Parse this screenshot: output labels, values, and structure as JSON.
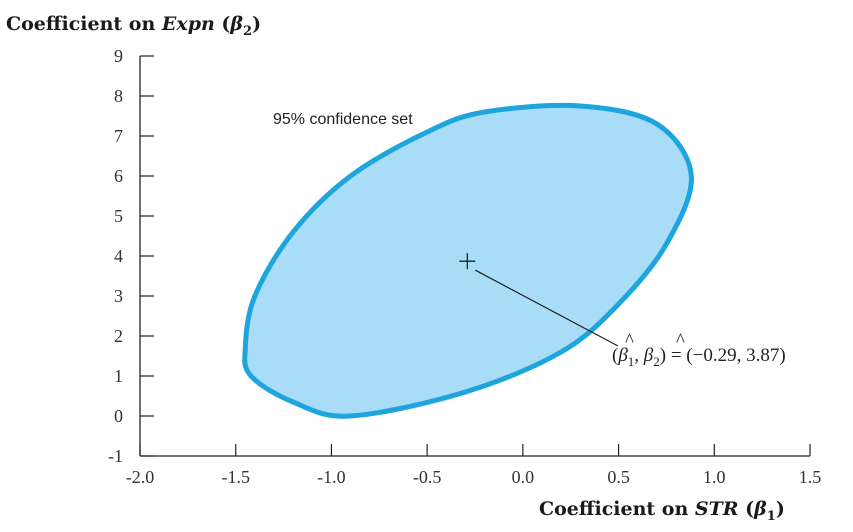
{
  "chart_data": {
    "type": "scatter",
    "title": "",
    "ylabel": {
      "prefix": "Coefficient on ",
      "variable": "Expn",
      "param_open": " (",
      "symbol": "β",
      "subscript": "2",
      "param_close": ")"
    },
    "xlabel": {
      "prefix": "Coefficient on ",
      "variable": "STR",
      "param_open": " (",
      "symbol": "β",
      "subscript": "1",
      "param_close": ")"
    },
    "xlim": [
      -2.0,
      1.5
    ],
    "ylim": [
      -1,
      9
    ],
    "xticks": [
      {
        "value": -2.0,
        "label": "-2.0"
      },
      {
        "value": -1.5,
        "label": "-1.5"
      },
      {
        "value": -1.0,
        "label": "-1.0"
      },
      {
        "value": -0.5,
        "label": "-0.5"
      },
      {
        "value": 0.0,
        "label": "0.0"
      },
      {
        "value": 0.5,
        "label": "0.5"
      },
      {
        "value": 1.0,
        "label": "1.0"
      },
      {
        "value": 1.5,
        "label": "1.5"
      }
    ],
    "yticks": [
      {
        "value": -1,
        "label": "-1"
      },
      {
        "value": 0,
        "label": "0"
      },
      {
        "value": 1,
        "label": "1"
      },
      {
        "value": 2,
        "label": "2"
      },
      {
        "value": 3,
        "label": "3"
      },
      {
        "value": 4,
        "label": "4"
      },
      {
        "value": 5,
        "label": "5"
      },
      {
        "value": 6,
        "label": "6"
      },
      {
        "value": 7,
        "label": "7"
      },
      {
        "value": 8,
        "label": "8"
      },
      {
        "value": 9,
        "label": "9"
      }
    ],
    "confidence_set": {
      "label": "95% confidence set",
      "fill_color": "#a9dcf6",
      "stroke_color": "#1ea5dd",
      "boundary": [
        [
          -1.45,
          1.7
        ],
        [
          -1.4,
          3.0
        ],
        [
          -1.2,
          4.6
        ],
        [
          -0.9,
          6.0
        ],
        [
          -0.5,
          7.1
        ],
        [
          -0.2,
          7.6
        ],
        [
          0.3,
          7.75
        ],
        [
          0.7,
          7.3
        ],
        [
          0.88,
          6.0
        ],
        [
          0.75,
          4.3
        ],
        [
          0.5,
          2.8
        ],
        [
          0.2,
          1.6
        ],
        [
          -0.3,
          0.6
        ],
        [
          -0.9,
          0.0
        ],
        [
          -1.2,
          0.35
        ],
        [
          -1.42,
          1.0
        ]
      ]
    },
    "point": {
      "x": -0.29,
      "y": 3.87,
      "label_open": "(",
      "beta": "β",
      "sub1": "1",
      "sep": ", ",
      "sub2": "2",
      "label_close": ") = (−0.29, 3.87)"
    }
  }
}
